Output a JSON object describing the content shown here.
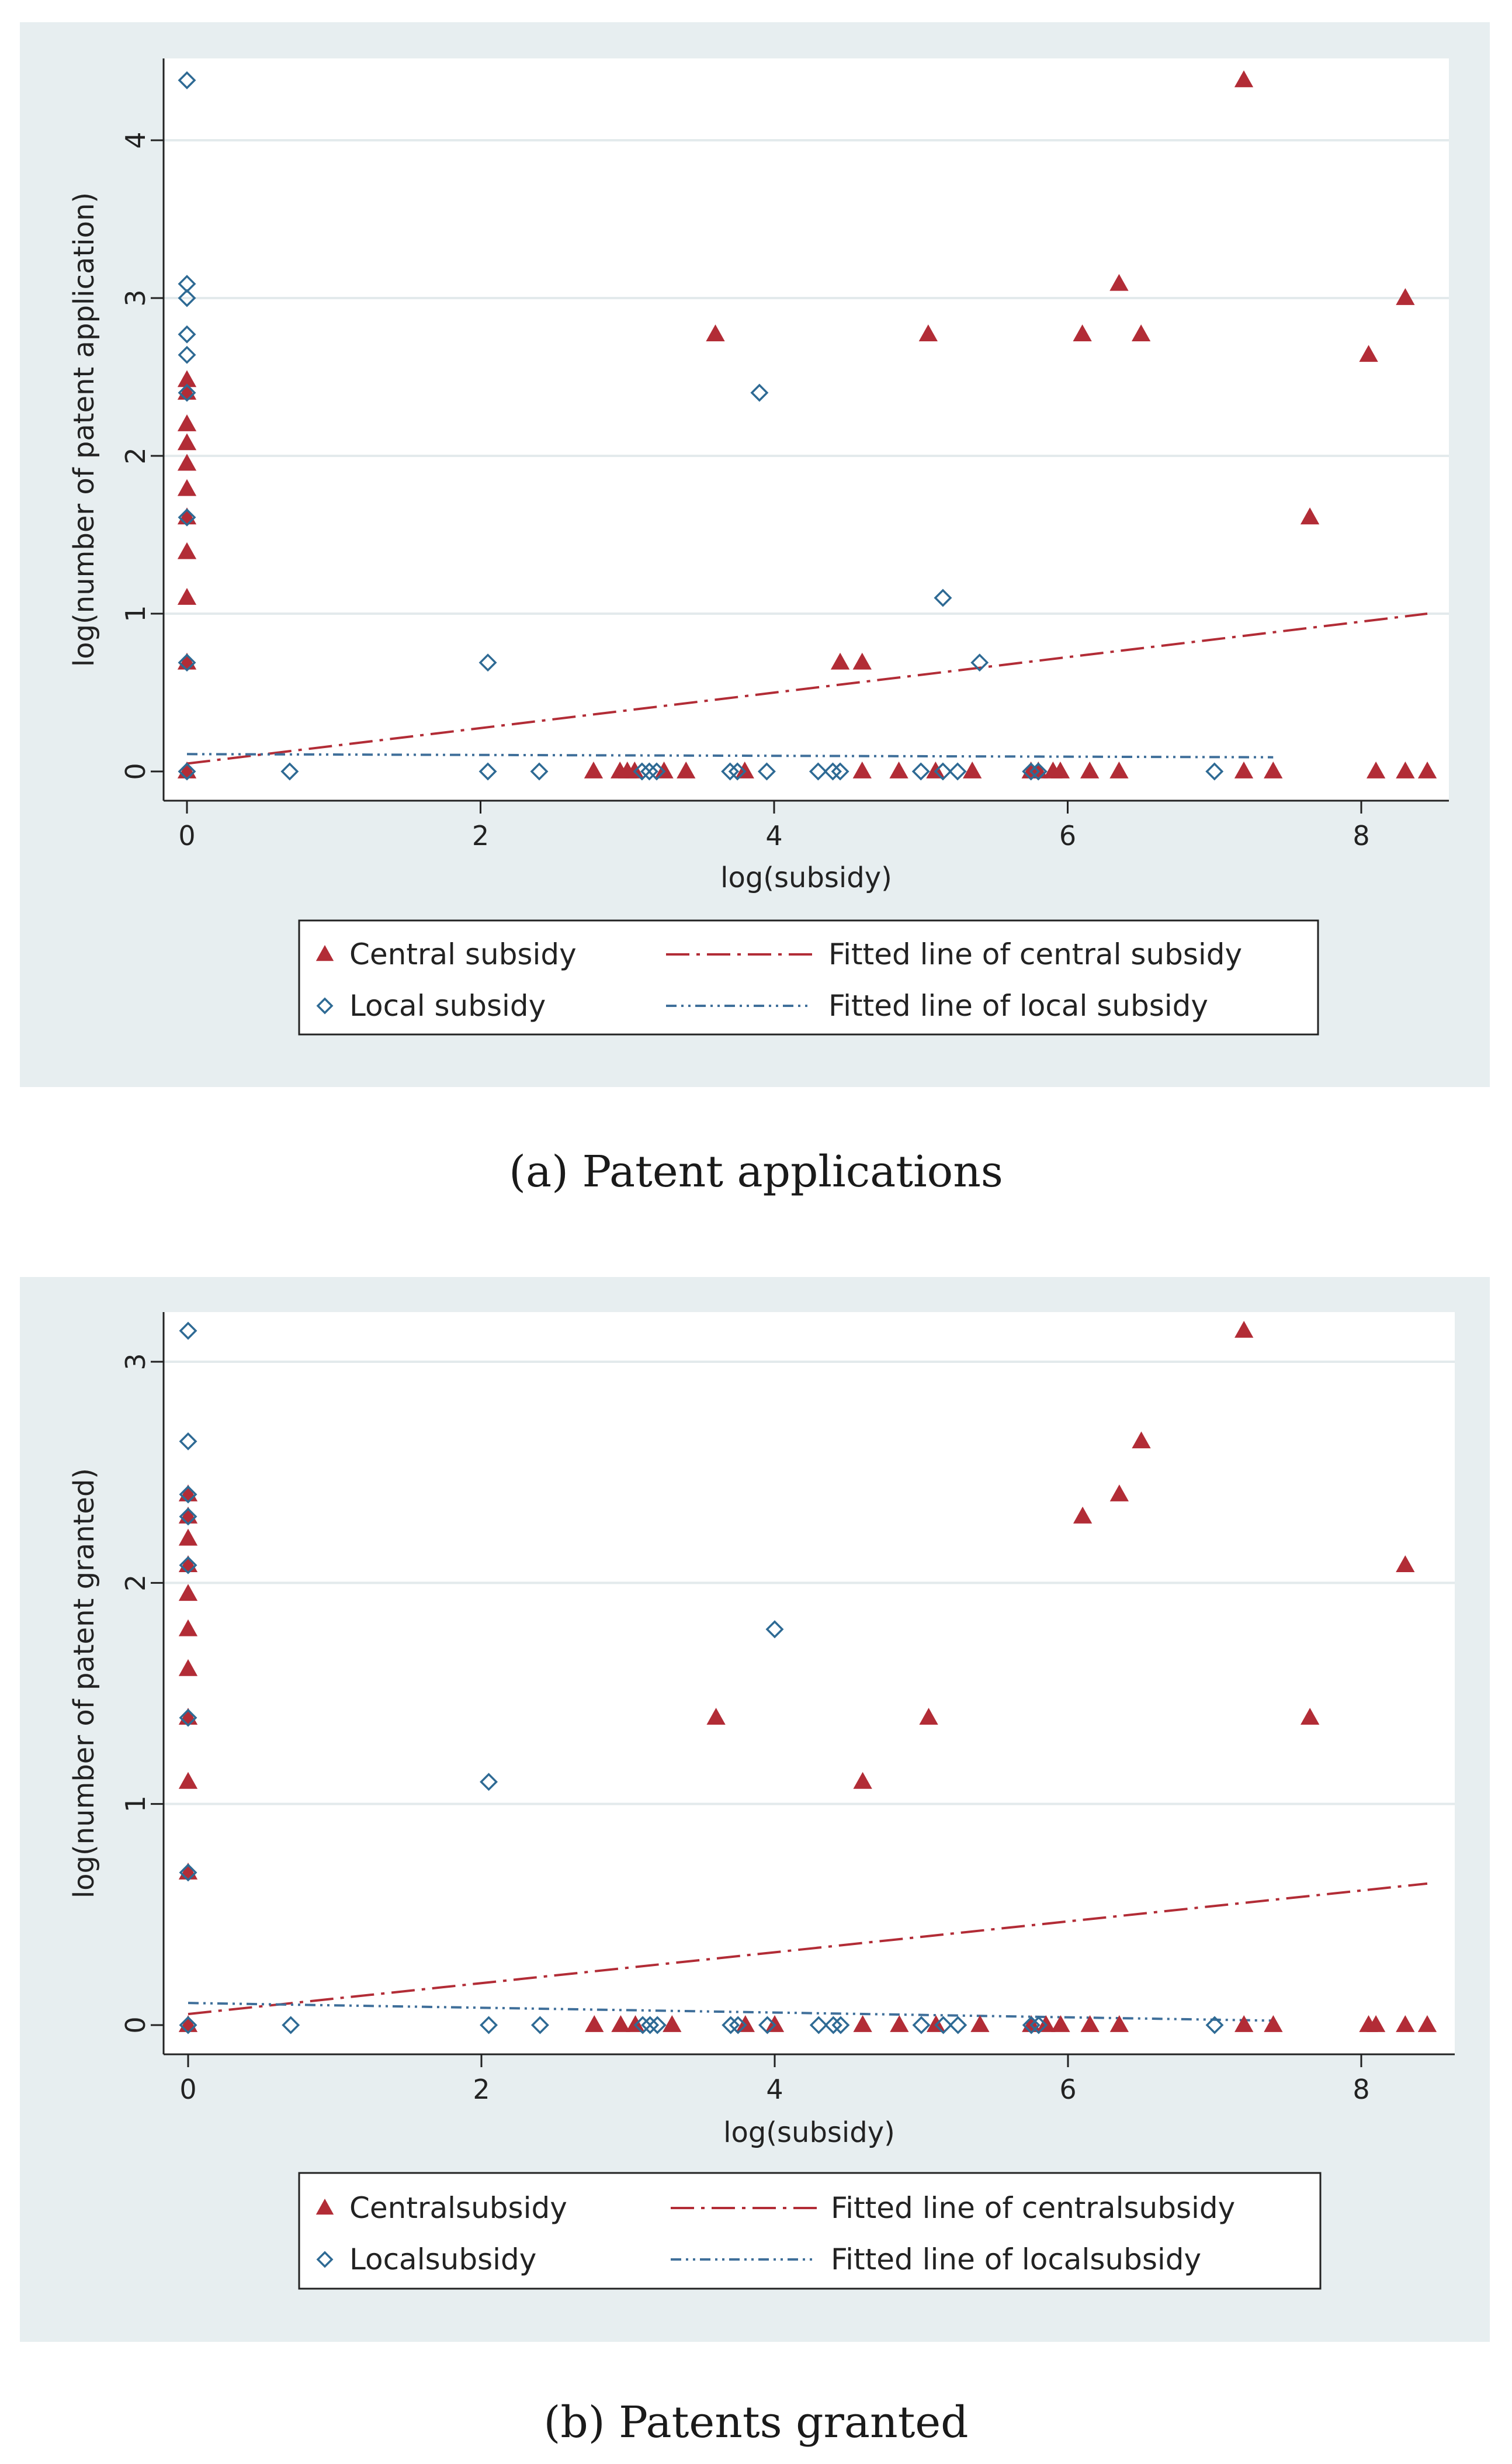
{
  "figure": {
    "colors": {
      "outer_bg": "#e7eef0",
      "plot_bg": "#ffffff",
      "grid": "#e3eaec",
      "central": "#b22c36",
      "local": "#2e6a94",
      "local_fit": "#3f6f9a"
    },
    "panels": [
      {
        "caption": "(a) Patent applications",
        "legend": {
          "central_label": "Central subsidy",
          "local_label": "Local subsidy",
          "central_fit_label": "Fitted line of central subsidy",
          "local_fit_label": "Fitted line of local subsidy"
        }
      },
      {
        "caption": "(b) Patents granted",
        "legend": {
          "central_label": "Centralsubsidy",
          "local_label": "Localsubsidy",
          "central_fit_label": "Fitted line of centralsubsidy",
          "local_fit_label": "Fitted line of localsubsidy"
        }
      }
    ]
  },
  "chart_data": [
    {
      "type": "scatter",
      "xlabel": "log(subsidy)",
      "ylabel": "log(number of patent application)",
      "xlim": [
        0,
        8.5
      ],
      "ylim": [
        0,
        4.4
      ],
      "xticks": [
        0,
        2,
        4,
        6,
        8
      ],
      "yticks": [
        0,
        1,
        2,
        3,
        4
      ],
      "grid": true,
      "legend_position": "bottom",
      "series": [
        {
          "name": "Central subsidy",
          "marker": "triangle",
          "points": [
            [
              0,
              0
            ],
            [
              0,
              0.69
            ],
            [
              0,
              1.1
            ],
            [
              0,
              1.39
            ],
            [
              0,
              1.61
            ],
            [
              0,
              1.79
            ],
            [
              0,
              1.95
            ],
            [
              0,
              2.08
            ],
            [
              0,
              2.2
            ],
            [
              0,
              2.4
            ],
            [
              0,
              2.48
            ],
            [
              2.77,
              0
            ],
            [
              2.95,
              0
            ],
            [
              3.0,
              0
            ],
            [
              3.05,
              0
            ],
            [
              3.25,
              0
            ],
            [
              3.4,
              0
            ],
            [
              3.6,
              2.77
            ],
            [
              3.8,
              0
            ],
            [
              4.45,
              0.69
            ],
            [
              4.6,
              0.69
            ],
            [
              4.6,
              0
            ],
            [
              4.85,
              0
            ],
            [
              5.05,
              2.77
            ],
            [
              5.1,
              0
            ],
            [
              5.35,
              0
            ],
            [
              5.75,
              0
            ],
            [
              5.8,
              0
            ],
            [
              5.9,
              0
            ],
            [
              5.95,
              0
            ],
            [
              6.1,
              2.77
            ],
            [
              6.15,
              0
            ],
            [
              6.35,
              3.09
            ],
            [
              6.35,
              0
            ],
            [
              6.5,
              2.77
            ],
            [
              7.2,
              4.38
            ],
            [
              7.2,
              0
            ],
            [
              7.4,
              0
            ],
            [
              7.65,
              1.61
            ],
            [
              8.05,
              2.64
            ],
            [
              8.1,
              0
            ],
            [
              8.3,
              0
            ],
            [
              8.3,
              3.0
            ],
            [
              8.45,
              0
            ]
          ]
        },
        {
          "name": "Local subsidy",
          "marker": "diamond-hollow",
          "points": [
            [
              0,
              4.38
            ],
            [
              0,
              3.09
            ],
            [
              0,
              3.0
            ],
            [
              0,
              2.77
            ],
            [
              0,
              2.64
            ],
            [
              0,
              2.4
            ],
            [
              0,
              1.61
            ],
            [
              0,
              0.69
            ],
            [
              0,
              0
            ],
            [
              0.7,
              0
            ],
            [
              2.05,
              0.69
            ],
            [
              2.05,
              0
            ],
            [
              2.4,
              0
            ],
            [
              3.1,
              0
            ],
            [
              3.15,
              0
            ],
            [
              3.2,
              0
            ],
            [
              3.7,
              0
            ],
            [
              3.75,
              0
            ],
            [
              3.9,
              2.4
            ],
            [
              3.95,
              0
            ],
            [
              4.3,
              0
            ],
            [
              4.4,
              0
            ],
            [
              4.45,
              0
            ],
            [
              5.0,
              0
            ],
            [
              5.15,
              1.1
            ],
            [
              5.15,
              0
            ],
            [
              5.25,
              0
            ],
            [
              5.4,
              0.69
            ],
            [
              5.75,
              0
            ],
            [
              5.8,
              0
            ],
            [
              7.0,
              0
            ]
          ]
        },
        {
          "name": "Fitted line of central subsidy",
          "line": [
            [
              0,
              0.05
            ],
            [
              8.45,
              1.0
            ]
          ]
        },
        {
          "name": "Fitted line of local subsidy",
          "line": [
            [
              0,
              0.11
            ],
            [
              7.4,
              0.09
            ]
          ]
        }
      ]
    },
    {
      "type": "scatter",
      "xlabel": "log(subsidy)",
      "ylabel": "log(number of patent granted)",
      "xlim": [
        0,
        8.5
      ],
      "ylim": [
        0,
        3.2
      ],
      "xticks": [
        0,
        2,
        4,
        6,
        8
      ],
      "yticks": [
        0,
        1,
        2,
        3
      ],
      "grid": true,
      "legend_position": "bottom",
      "series": [
        {
          "name": "Centralsubsidy",
          "marker": "triangle",
          "points": [
            [
              0,
              0
            ],
            [
              0,
              0.69
            ],
            [
              0,
              1.1
            ],
            [
              0,
              1.39
            ],
            [
              0,
              1.61
            ],
            [
              0,
              1.79
            ],
            [
              0,
              1.95
            ],
            [
              0,
              2.08
            ],
            [
              0,
              2.2
            ],
            [
              0,
              2.3
            ],
            [
              0,
              2.4
            ],
            [
              2.77,
              0
            ],
            [
              2.95,
              0
            ],
            [
              3.05,
              0
            ],
            [
              3.3,
              0
            ],
            [
              3.6,
              1.39
            ],
            [
              3.8,
              0
            ],
            [
              4.0,
              0
            ],
            [
              4.6,
              1.1
            ],
            [
              4.6,
              0
            ],
            [
              4.85,
              0
            ],
            [
              5.05,
              1.39
            ],
            [
              5.1,
              0
            ],
            [
              5.4,
              0
            ],
            [
              5.75,
              0
            ],
            [
              5.85,
              0
            ],
            [
              5.95,
              0
            ],
            [
              6.1,
              2.3
            ],
            [
              6.15,
              0
            ],
            [
              6.35,
              2.4
            ],
            [
              6.35,
              0
            ],
            [
              6.5,
              2.64
            ],
            [
              7.2,
              3.14
            ],
            [
              7.2,
              0
            ],
            [
              7.4,
              0
            ],
            [
              7.65,
              1.39
            ],
            [
              8.05,
              0
            ],
            [
              8.1,
              0
            ],
            [
              8.3,
              2.08
            ],
            [
              8.3,
              0
            ],
            [
              8.45,
              0
            ]
          ]
        },
        {
          "name": "Localsubsidy",
          "marker": "diamond-hollow",
          "points": [
            [
              0,
              3.14
            ],
            [
              0,
              2.64
            ],
            [
              0,
              2.4
            ],
            [
              0,
              2.3
            ],
            [
              0,
              2.08
            ],
            [
              0,
              1.39
            ],
            [
              0,
              0.69
            ],
            [
              0,
              0
            ],
            [
              0.7,
              0
            ],
            [
              2.05,
              1.1
            ],
            [
              2.05,
              0
            ],
            [
              2.4,
              0
            ],
            [
              3.1,
              0
            ],
            [
              3.15,
              0
            ],
            [
              3.2,
              0
            ],
            [
              3.7,
              0
            ],
            [
              3.75,
              0
            ],
            [
              3.95,
              0
            ],
            [
              4.0,
              1.79
            ],
            [
              4.3,
              0
            ],
            [
              4.4,
              0
            ],
            [
              4.45,
              0
            ],
            [
              5.0,
              0
            ],
            [
              5.15,
              0
            ],
            [
              5.25,
              0
            ],
            [
              5.75,
              0
            ],
            [
              5.8,
              0
            ],
            [
              7.0,
              0
            ]
          ]
        },
        {
          "name": "Fitted line of centralsubsidy",
          "line": [
            [
              0,
              0.05
            ],
            [
              8.45,
              0.64
            ]
          ]
        },
        {
          "name": "Fitted line of localsubsidy",
          "line": [
            [
              0,
              0.1
            ],
            [
              7.4,
              0.02
            ]
          ]
        }
      ]
    }
  ]
}
